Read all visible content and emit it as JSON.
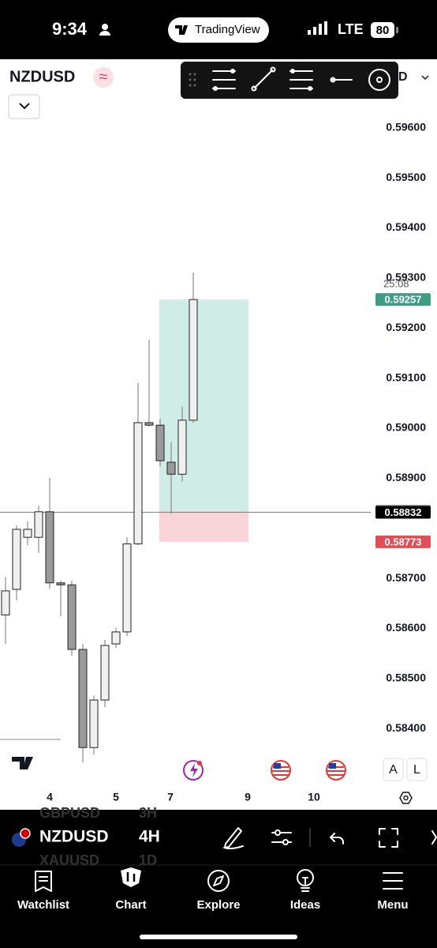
{
  "status_bar": {
    "time": "9:34",
    "app": "TradingView",
    "network": "LTE",
    "battery": "80"
  },
  "header": {
    "symbol": "NZDUSD",
    "interval": "D"
  },
  "scale_buttons": [
    "A",
    "L"
  ],
  "bottom_bar": {
    "symbol": "NZDUSD",
    "interval": "4H",
    "picker_above": [
      "GBPUSD",
      "3H"
    ],
    "picker_below": [
      "XAUUSD",
      "1D"
    ]
  },
  "tabs": [
    "Watchlist",
    "Chart",
    "Explore",
    "Ideas",
    "Menu"
  ],
  "chart_data": {
    "type": "candlestick",
    "x_labels": [
      "4",
      "5",
      "7",
      "9",
      "10"
    ],
    "open": [
      0.58627,
      0.58678,
      0.58782,
      0.58782,
      0.58833,
      0.58691,
      0.58687,
      0.58558,
      0.58362,
      0.58457,
      0.58569,
      0.58593,
      0.58769,
      0.59011,
      0.59006,
      0.58932,
      0.58908,
      0.59016
    ],
    "high": [
      0.58703,
      0.58806,
      0.58814,
      0.58845,
      0.58901,
      0.58695,
      0.58695,
      0.58569,
      0.58466,
      0.58577,
      0.58601,
      0.58782,
      0.5909,
      0.59177,
      0.59019,
      0.58972,
      0.59043,
      0.59311
    ],
    "low": [
      0.58569,
      0.58656,
      0.58766,
      0.58751,
      0.58679,
      0.58624,
      0.58545,
      0.58332,
      0.58348,
      0.58443,
      0.58561,
      0.58585,
      0.58766,
      0.59003,
      0.58924,
      0.58829,
      0.58893,
      0.59011
    ],
    "close": [
      0.58675,
      0.58798,
      0.58798,
      0.58833,
      0.58691,
      0.58687,
      0.58558,
      0.58362,
      0.58457,
      0.58566,
      0.58593,
      0.58769,
      0.59011,
      0.59006,
      0.58935,
      0.58908,
      0.59016,
      0.59257
    ],
    "ylim": [
      0.58293,
      0.59737
    ],
    "yticks": [
      {
        "value": 0.596,
        "label": "0.59600"
      },
      {
        "value": 0.595,
        "label": "0.59500"
      },
      {
        "value": 0.594,
        "label": "0.59400"
      },
      {
        "value": 0.593,
        "label": "0.59300"
      },
      {
        "value": 0.592,
        "label": "0.59200"
      },
      {
        "value": 0.591,
        "label": "0.59100"
      },
      {
        "value": 0.59,
        "label": "0.59000"
      },
      {
        "value": 0.589,
        "label": "0.58900"
      },
      {
        "value": 0.587,
        "label": "0.58700"
      },
      {
        "value": 0.586,
        "label": "0.58600"
      },
      {
        "value": 0.585,
        "label": "0.58500"
      },
      {
        "value": 0.584,
        "label": "0.58400"
      }
    ],
    "position": {
      "target": 0.59257,
      "entry": 0.58834,
      "stop": 0.58773
    },
    "last_price": 0.58832,
    "countdown": "25:08",
    "up_color": "#f0f0f0",
    "down_color": "#9a9a9a"
  }
}
